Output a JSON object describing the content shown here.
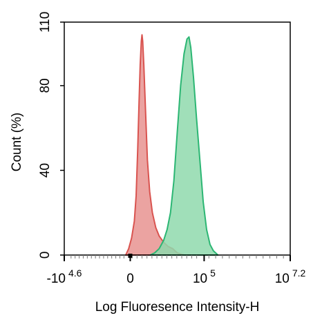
{
  "chart_data": {
    "type": "area",
    "title": "",
    "xlabel": "Log Fluoresence Intensity-H",
    "ylabel": "Count  (%)",
    "ylim": [
      0,
      110
    ],
    "y_ticks": [
      "0",
      "40",
      "80",
      "110"
    ],
    "x_ticks": [
      {
        "base": "-10",
        "exp": "4.6"
      },
      {
        "base": "0",
        "exp": ""
      },
      {
        "base": "10",
        "exp": "5"
      },
      {
        "base": "10",
        "exp": "7.2"
      }
    ],
    "x_scale": "biexponential",
    "x_tick_positions": [
      0.0,
      0.292,
      0.619,
      1.0
    ],
    "grid": false,
    "legend": "none",
    "series": [
      {
        "color": "#d9534f",
        "fill": "#e89390",
        "points": [
          [
            0.272,
            0
          ],
          [
            0.285,
            3
          ],
          [
            0.298,
            8
          ],
          [
            0.31,
            16
          ],
          [
            0.318,
            28
          ],
          [
            0.325,
            50
          ],
          [
            0.331,
            72
          ],
          [
            0.336,
            90
          ],
          [
            0.341,
            101
          ],
          [
            0.344,
            104
          ],
          [
            0.347,
            101
          ],
          [
            0.352,
            90
          ],
          [
            0.359,
            70
          ],
          [
            0.368,
            45
          ],
          [
            0.378,
            30
          ],
          [
            0.39,
            20
          ],
          [
            0.405,
            13
          ],
          [
            0.42,
            9
          ],
          [
            0.44,
            6
          ],
          [
            0.46,
            4
          ],
          [
            0.48,
            3
          ],
          [
            0.5,
            1
          ],
          [
            0.53,
            0
          ]
        ]
      },
      {
        "color": "#2bb673",
        "fill": "#8fd9ad",
        "points": [
          [
            0.38,
            0
          ],
          [
            0.4,
            1
          ],
          [
            0.42,
            3
          ],
          [
            0.44,
            7
          ],
          [
            0.455,
            12
          ],
          [
            0.47,
            20
          ],
          [
            0.485,
            35
          ],
          [
            0.5,
            58
          ],
          [
            0.515,
            80
          ],
          [
            0.53,
            95
          ],
          [
            0.543,
            102
          ],
          [
            0.552,
            103
          ],
          [
            0.56,
            98
          ],
          [
            0.572,
            84
          ],
          [
            0.585,
            65
          ],
          [
            0.6,
            45
          ],
          [
            0.615,
            25
          ],
          [
            0.63,
            12
          ],
          [
            0.645,
            5
          ],
          [
            0.66,
            2
          ],
          [
            0.68,
            0
          ]
        ]
      }
    ]
  }
}
